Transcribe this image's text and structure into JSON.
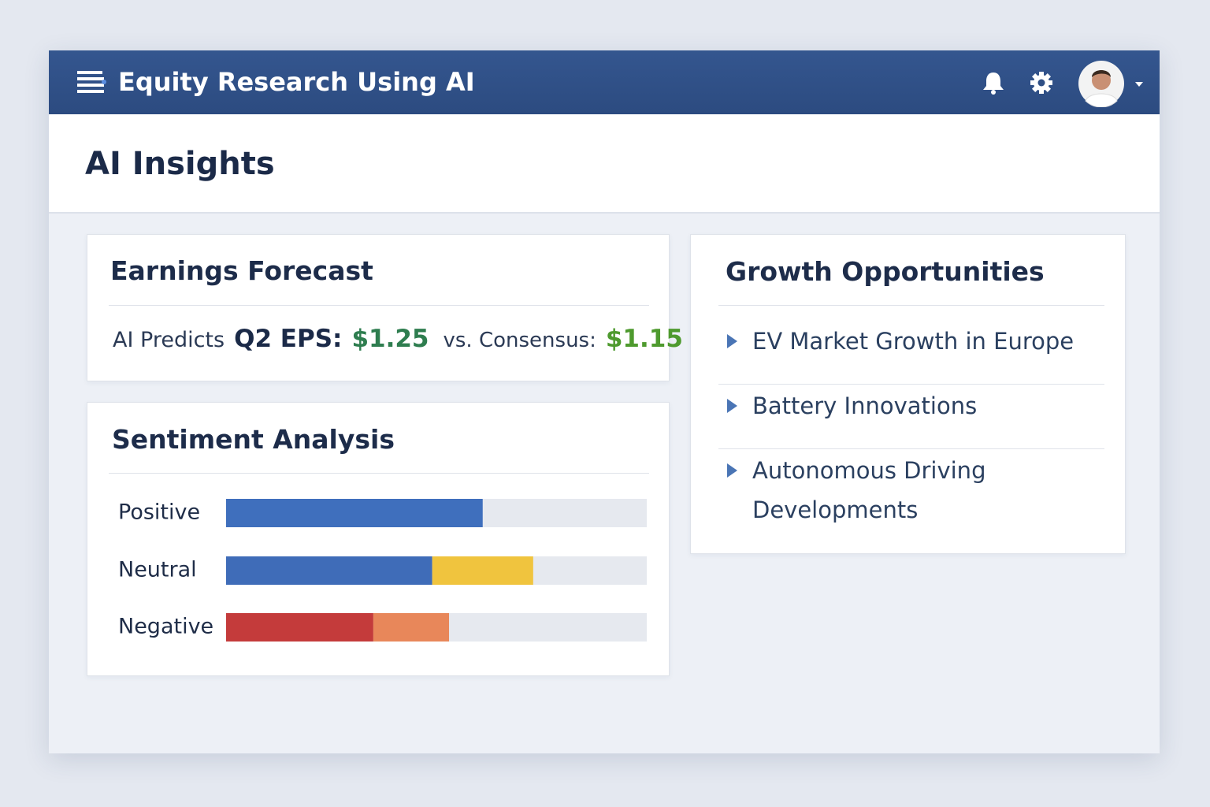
{
  "header": {
    "title": "Equity Research Using AI"
  },
  "page_title": "AI Insights",
  "earnings": {
    "title": "Earnings Forecast",
    "lead": "AI Predicts",
    "metric": "Q2 EPS:",
    "predicted": "$1.25",
    "versus": "vs. Consensus:",
    "consensus": "$1.15"
  },
  "chart_data": {
    "type": "bar",
    "title": "Sentiment Analysis",
    "categories": [
      "Positive",
      "Neutral",
      "Negative"
    ],
    "xlim": [
      0,
      100
    ],
    "series": [
      {
        "color": [
          "#3f6fbd",
          "#3f6cb8",
          "#c43b3b"
        ],
        "values": [
          61,
          49,
          35
        ]
      },
      {
        "color": [
          null,
          "#f0c43e",
          "#e8875a"
        ],
        "values": [
          null,
          24,
          18
        ]
      }
    ]
  },
  "growth": {
    "title": "Growth Opportunities",
    "items": [
      "EV Market Growth in Europe",
      "Battery Innovations",
      "Autonomous Driving Developments"
    ]
  }
}
